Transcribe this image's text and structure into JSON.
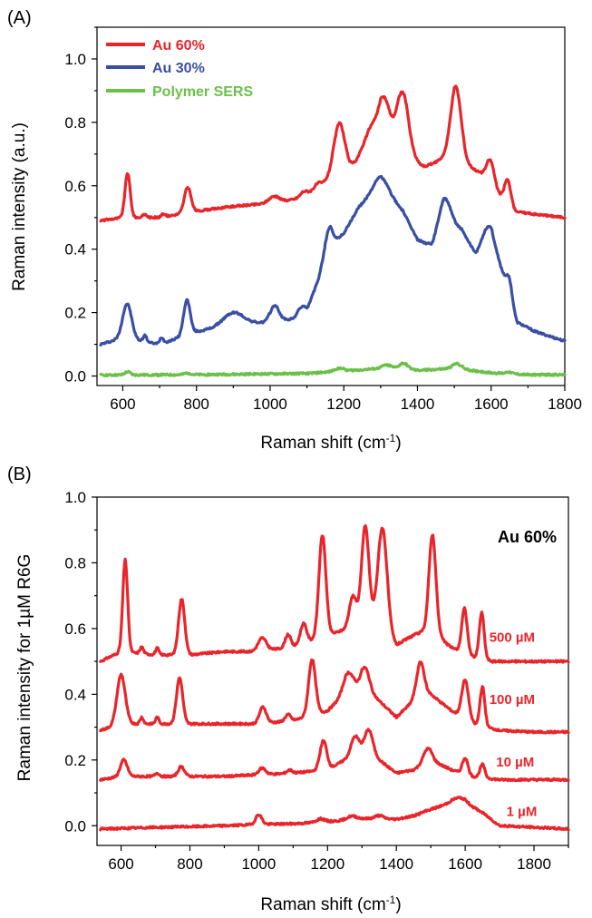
{
  "colors": {
    "au60": "#e8252b",
    "au30": "#3a4fa3",
    "polymer": "#6cc04a",
    "axis": "#000000"
  },
  "chart_data": [
    {
      "panel_label": "(A)",
      "type": "line",
      "xlabel": "Raman shift (cm",
      "xlabel_sup": "-1",
      "xlabel_end": ")",
      "ylabel": "Raman intensity (a.u.)",
      "xlim": [
        530,
        1800
      ],
      "ylim": [
        -0.03,
        1.1
      ],
      "x_ticks": [
        600,
        800,
        1000,
        1200,
        1400,
        1600,
        1800
      ],
      "y_ticks": [
        {
          "v": 0.0,
          "label": "0.0"
        },
        {
          "v": 0.2,
          "label": "0.2"
        },
        {
          "v": 0.4,
          "label": "0.4"
        },
        {
          "v": 0.6,
          "label": "0.6"
        },
        {
          "v": 0.8,
          "label": "0.8"
        },
        {
          "v": 1.0,
          "label": "1.0"
        }
      ],
      "legend": {
        "placement": "top-left"
      },
      "series": [
        {
          "name": "Au 60%",
          "color_key": "au60",
          "baseline": [
            [
              540,
              0.49
            ],
            [
              600,
              0.5
            ],
            [
              700,
              0.5
            ],
            [
              800,
              0.52
            ],
            [
              900,
              0.535
            ],
            [
              1000,
              0.545
            ],
            [
              1080,
              0.56
            ],
            [
              1140,
              0.6
            ],
            [
              1170,
              0.64
            ],
            [
              1220,
              0.66
            ],
            [
              1260,
              0.7
            ],
            [
              1300,
              0.78
            ],
            [
              1350,
              0.75
            ],
            [
              1380,
              0.68
            ],
            [
              1420,
              0.66
            ],
            [
              1460,
              0.68
            ],
            [
              1500,
              0.72
            ],
            [
              1530,
              0.67
            ],
            [
              1570,
              0.64
            ],
            [
              1620,
              0.57
            ],
            [
              1660,
              0.52
            ],
            [
              1720,
              0.51
            ],
            [
              1800,
              0.5
            ]
          ],
          "peaks": [
            [
              613,
              0.14,
              7
            ],
            [
              660,
              0.01,
              5
            ],
            [
              710,
              0.01,
              5
            ],
            [
              776,
              0.08,
              9
            ],
            [
              1010,
              0.02,
              14
            ],
            [
              1090,
              0.015,
              10
            ],
            [
              1130,
              0.015,
              10
            ],
            [
              1188,
              0.15,
              14
            ],
            [
              1270,
              0.06,
              18
            ],
            [
              1310,
              0.1,
              14
            ],
            [
              1362,
              0.17,
              16
            ],
            [
              1505,
              0.2,
              14
            ],
            [
              1598,
              0.08,
              11
            ],
            [
              1645,
              0.08,
              9
            ]
          ]
        },
        {
          "name": "Au 30%",
          "color_key": "au30",
          "baseline": [
            [
              540,
              0.1
            ],
            [
              600,
              0.12
            ],
            [
              700,
              0.1
            ],
            [
              800,
              0.14
            ],
            [
              900,
              0.16
            ],
            [
              1000,
              0.17
            ],
            [
              1060,
              0.18
            ],
            [
              1100,
              0.21
            ],
            [
              1130,
              0.3
            ],
            [
              1150,
              0.4
            ],
            [
              1200,
              0.45
            ],
            [
              1240,
              0.53
            ],
            [
              1300,
              0.58
            ],
            [
              1360,
              0.52
            ],
            [
              1400,
              0.43
            ],
            [
              1440,
              0.41
            ],
            [
              1470,
              0.48
            ],
            [
              1520,
              0.46
            ],
            [
              1560,
              0.38
            ],
            [
              1600,
              0.42
            ],
            [
              1640,
              0.3
            ],
            [
              1670,
              0.17
            ],
            [
              1720,
              0.14
            ],
            [
              1800,
              0.11
            ]
          ],
          "peaks": [
            [
              612,
              0.11,
              12
            ],
            [
              660,
              0.02,
              5
            ],
            [
              705,
              0.02,
              5
            ],
            [
              774,
              0.11,
              9
            ],
            [
              900,
              0.04,
              28
            ],
            [
              1012,
              0.05,
              12
            ],
            [
              1085,
              0.02,
              9
            ],
            [
              1162,
              0.06,
              8
            ],
            [
              1300,
              0.05,
              24
            ],
            [
              1475,
              0.08,
              17
            ],
            [
              1590,
              0.06,
              16
            ],
            [
              1650,
              0.05,
              7
            ]
          ]
        },
        {
          "name": "Polymer SERS",
          "color_key": "polymer",
          "baseline": [
            [
              540,
              0.003
            ],
            [
              800,
              0.004
            ],
            [
              1100,
              0.008
            ],
            [
              1200,
              0.016
            ],
            [
              1300,
              0.024
            ],
            [
              1400,
              0.018
            ],
            [
              1500,
              0.024
            ],
            [
              1600,
              0.01
            ],
            [
              1700,
              0.004
            ],
            [
              1800,
              0.004
            ]
          ],
          "peaks": [
            [
              613,
              0.01,
              7
            ],
            [
              776,
              0.006,
              8
            ],
            [
              1188,
              0.01,
              12
            ],
            [
              1318,
              0.012,
              12
            ],
            [
              1362,
              0.02,
              12
            ],
            [
              1508,
              0.016,
              12
            ],
            [
              1648,
              0.006,
              8
            ]
          ]
        }
      ]
    },
    {
      "panel_label": "(B)",
      "type": "line",
      "xlabel": "Raman shift (cm",
      "xlabel_sup": "-1",
      "xlabel_end": ")",
      "ylabel": "Raman intensity for 1µM R6G",
      "annotation": "Au 60%",
      "xlim": [
        530,
        1900
      ],
      "ylim": [
        -0.06,
        1.0
      ],
      "x_ticks": [
        600,
        800,
        1000,
        1200,
        1400,
        1600,
        1800
      ],
      "y_ticks": [
        {
          "v": 0.0,
          "label": "0.0"
        },
        {
          "v": 0.2,
          "label": "0.2"
        },
        {
          "v": 0.4,
          "label": "0.4"
        },
        {
          "v": 0.6,
          "label": "0.6"
        },
        {
          "v": 0.8,
          "label": "0.8"
        },
        {
          "v": 1.0,
          "label": "1.0"
        }
      ],
      "series": [
        {
          "name": "500 µM",
          "color_key": "au60",
          "label_at": [
            1670,
            0.56
          ],
          "baseline": [
            [
              540,
              0.5
            ],
            [
              600,
              0.53
            ],
            [
              700,
              0.52
            ],
            [
              800,
              0.52
            ],
            [
              900,
              0.53
            ],
            [
              1000,
              0.53
            ],
            [
              1100,
              0.545
            ],
            [
              1200,
              0.58
            ],
            [
              1260,
              0.6
            ],
            [
              1300,
              0.66
            ],
            [
              1350,
              0.62
            ],
            [
              1400,
              0.55
            ],
            [
              1450,
              0.58
            ],
            [
              1500,
              0.6
            ],
            [
              1550,
              0.55
            ],
            [
              1600,
              0.52
            ],
            [
              1680,
              0.5
            ],
            [
              1800,
              0.5
            ],
            [
              1900,
              0.5
            ]
          ],
          "peaks": [
            [
              612,
              0.28,
              7
            ],
            [
              660,
              0.02,
              5
            ],
            [
              705,
              0.02,
              5
            ],
            [
              776,
              0.17,
              9
            ],
            [
              1010,
              0.04,
              12
            ],
            [
              1085,
              0.04,
              8
            ],
            [
              1130,
              0.06,
              9
            ],
            [
              1185,
              0.31,
              10
            ],
            [
              1272,
              0.08,
              10
            ],
            [
              1310,
              0.26,
              10
            ],
            [
              1360,
              0.3,
              13
            ],
            [
              1505,
              0.29,
              10
            ],
            [
              1598,
              0.14,
              8
            ],
            [
              1648,
              0.14,
              7
            ]
          ]
        },
        {
          "name": "100 µM",
          "color_key": "au60",
          "label_at": [
            1670,
            0.37
          ],
          "baseline": [
            [
              540,
              0.29
            ],
            [
              600,
              0.31
            ],
            [
              700,
              0.31
            ],
            [
              800,
              0.31
            ],
            [
              900,
              0.31
            ],
            [
              1000,
              0.31
            ],
            [
              1100,
              0.32
            ],
            [
              1200,
              0.35
            ],
            [
              1250,
              0.4
            ],
            [
              1300,
              0.43
            ],
            [
              1350,
              0.38
            ],
            [
              1400,
              0.33
            ],
            [
              1450,
              0.38
            ],
            [
              1500,
              0.4
            ],
            [
              1560,
              0.35
            ],
            [
              1620,
              0.31
            ],
            [
              1700,
              0.29
            ],
            [
              1800,
              0.285
            ],
            [
              1900,
              0.285
            ]
          ],
          "peaks": [
            [
              600,
              0.15,
              12
            ],
            [
              660,
              0.02,
              5
            ],
            [
              705,
              0.02,
              5
            ],
            [
              770,
              0.14,
              9
            ],
            [
              1012,
              0.05,
              10
            ],
            [
              1085,
              0.02,
              8
            ],
            [
              1155,
              0.17,
              10
            ],
            [
              1260,
              0.06,
              14
            ],
            [
              1310,
              0.06,
              12
            ],
            [
              1470,
              0.11,
              11
            ],
            [
              1600,
              0.12,
              10
            ],
            [
              1650,
              0.12,
              7
            ]
          ]
        },
        {
          "name": "10 µM",
          "color_key": "au60",
          "label_at": [
            1690,
            0.18
          ],
          "baseline": [
            [
              540,
              0.14
            ],
            [
              600,
              0.15
            ],
            [
              700,
              0.15
            ],
            [
              800,
              0.15
            ],
            [
              900,
              0.15
            ],
            [
              1000,
              0.155
            ],
            [
              1100,
              0.16
            ],
            [
              1200,
              0.17
            ],
            [
              1250,
              0.2
            ],
            [
              1300,
              0.22
            ],
            [
              1350,
              0.2
            ],
            [
              1400,
              0.16
            ],
            [
              1450,
              0.17
            ],
            [
              1500,
              0.2
            ],
            [
              1560,
              0.17
            ],
            [
              1620,
              0.15
            ],
            [
              1700,
              0.14
            ],
            [
              1900,
              0.14
            ]
          ],
          "peaks": [
            [
              608,
              0.05,
              10
            ],
            [
              705,
              0.01,
              6
            ],
            [
              775,
              0.03,
              9
            ],
            [
              1010,
              0.02,
              10
            ],
            [
              1090,
              0.01,
              8
            ],
            [
              1188,
              0.09,
              10
            ],
            [
              1280,
              0.06,
              12
            ],
            [
              1320,
              0.08,
              12
            ],
            [
              1490,
              0.04,
              12
            ],
            [
              1600,
              0.05,
              8
            ],
            [
              1650,
              0.04,
              7
            ]
          ]
        },
        {
          "name": "1 µM",
          "color_key": "au60",
          "label_at": [
            1720,
            0.03
          ],
          "baseline": [
            [
              540,
              -0.01
            ],
            [
              700,
              -0.005
            ],
            [
              800,
              -0.003
            ],
            [
              900,
              0.0
            ],
            [
              1000,
              0.004
            ],
            [
              1100,
              0.006
            ],
            [
              1200,
              0.012
            ],
            [
              1300,
              0.022
            ],
            [
              1400,
              0.02
            ],
            [
              1450,
              0.03
            ],
            [
              1500,
              0.05
            ],
            [
              1560,
              0.07
            ],
            [
              1600,
              0.07
            ],
            [
              1650,
              0.04
            ],
            [
              1700,
              0.0
            ],
            [
              1800,
              -0.005
            ],
            [
              1900,
              -0.01
            ]
          ],
          "peaks": [
            [
              1000,
              0.03,
              9
            ],
            [
              1180,
              0.01,
              12
            ],
            [
              1270,
              0.01,
              14
            ],
            [
              1350,
              0.01,
              12
            ],
            [
              1582,
              0.015,
              18
            ]
          ]
        }
      ]
    }
  ]
}
